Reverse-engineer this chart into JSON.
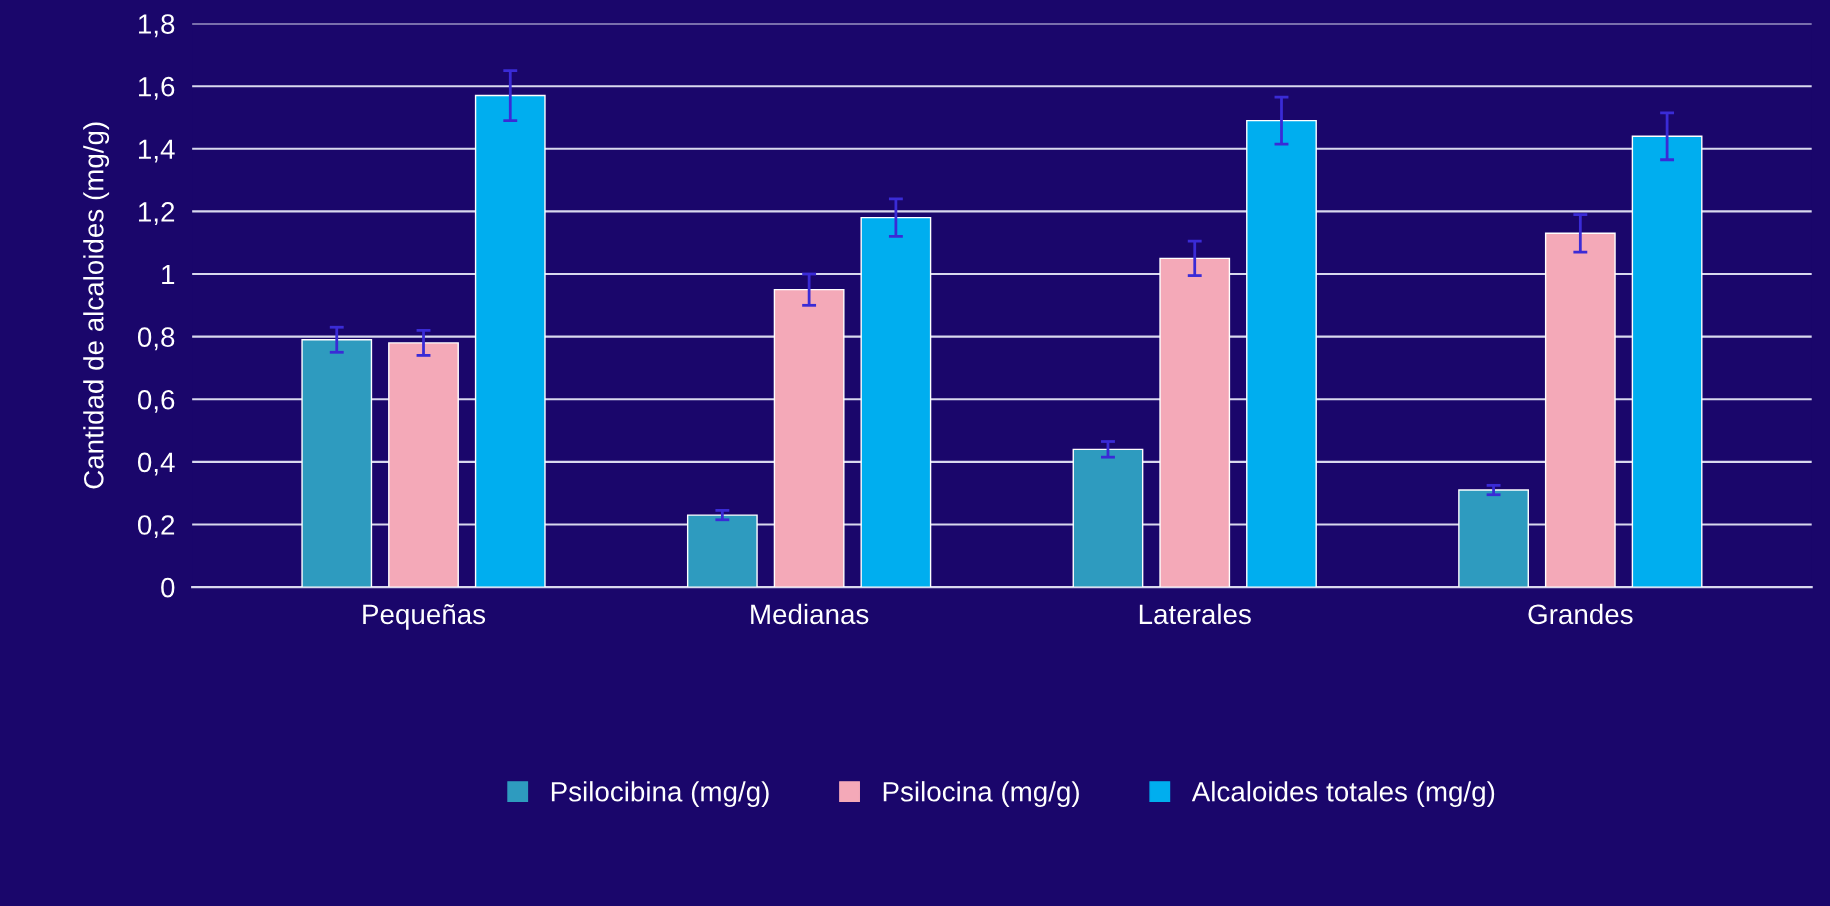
{
  "chart_data": {
    "type": "bar",
    "ylabel": "Cantidad de alcaloides (mg/g)",
    "categories": [
      "Pequeñas",
      "Medianas",
      "Laterales",
      "Grandes"
    ],
    "series": [
      {
        "name": "Psilocibina (mg/g)",
        "color": "#2e9bbf",
        "values": [
          0.79,
          0.23,
          0.44,
          0.31
        ],
        "errors": [
          0.04,
          0.015,
          0.025,
          0.015
        ]
      },
      {
        "name": "Psilocina (mg/g)",
        "color": "#f4a9b8",
        "values": [
          0.78,
          0.95,
          1.05,
          1.13
        ],
        "errors": [
          0.04,
          0.05,
          0.055,
          0.06
        ]
      },
      {
        "name": "Alcaloides totales (mg/g)",
        "color": "#00aeef",
        "values": [
          1.57,
          1.18,
          1.49,
          1.44
        ],
        "errors": [
          0.08,
          0.06,
          0.075,
          0.075
        ]
      }
    ],
    "ylim": [
      0,
      1.8
    ],
    "yticks": [
      {
        "value": 0,
        "label": "0"
      },
      {
        "value": 0.2,
        "label": "0,2"
      },
      {
        "value": 0.4,
        "label": "0,4"
      },
      {
        "value": 0.6,
        "label": "0,6"
      },
      {
        "value": 0.8,
        "label": "0,8"
      },
      {
        "value": 1,
        "label": "1"
      },
      {
        "value": 1.2,
        "label": "1,2"
      },
      {
        "value": 1.4,
        "label": "1,4"
      },
      {
        "value": 1.6,
        "label": "1,6"
      },
      {
        "value": 1.8,
        "label": "1,8"
      }
    ],
    "grid": "y",
    "legend": "bottom"
  }
}
